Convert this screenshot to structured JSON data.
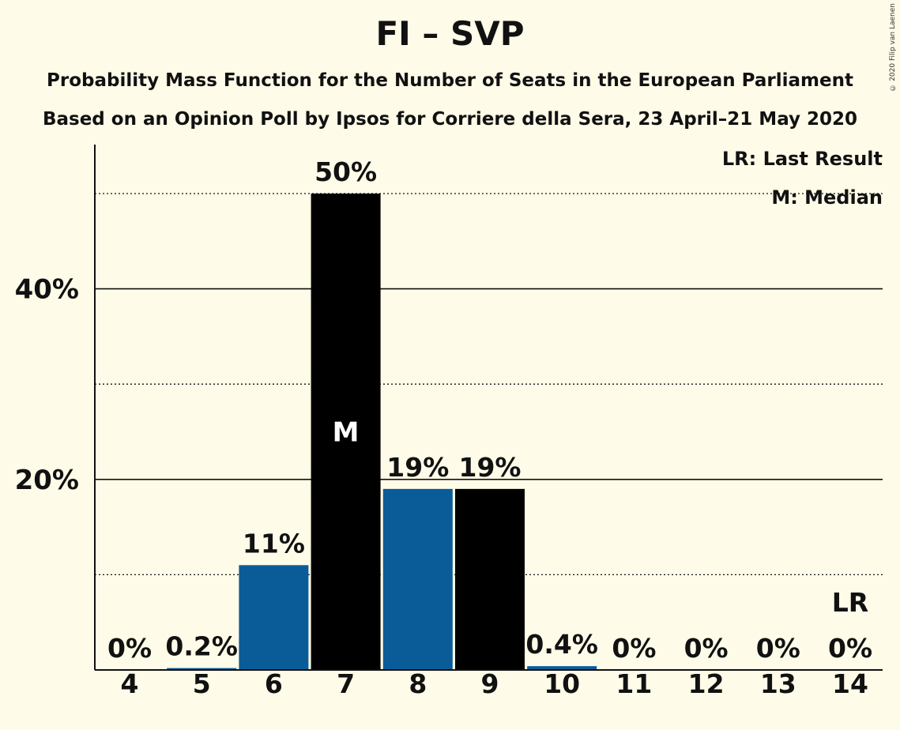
{
  "title": "FI – SVP",
  "subtitle1": "Probability Mass Function for the Number of Seats in the European Parliament",
  "subtitle2": "Based on an Opinion Poll by Ipsos for Corriere della Sera, 23 April–21 May 2020",
  "copyright": "© 2020 Filip van Laenen",
  "legend": {
    "lr": "LR: Last Result",
    "m": "M: Median"
  },
  "colors": {
    "background": "#fefbe8",
    "blue": "#0a5c99",
    "black": "#000000",
    "axis": "#111111"
  },
  "chart_data": {
    "type": "bar",
    "categories": [
      "4",
      "5",
      "6",
      "7",
      "8",
      "9",
      "10",
      "11",
      "12",
      "13",
      "14"
    ],
    "values": [
      0,
      0.2,
      11,
      50,
      19,
      19,
      0.4,
      0,
      0,
      0,
      0
    ],
    "data_labels": [
      "0%",
      "0.2%",
      "11%",
      "50%",
      "19%",
      "19%",
      "0.4%",
      "0%",
      "0%",
      "0%",
      "0%"
    ],
    "bar_colors": [
      "#0a5c99",
      "#0a5c99",
      "#0a5c99",
      "#000000",
      "#0a5c99",
      "#000000",
      "#0a5c99",
      "#0a5c99",
      "#0a5c99",
      "#0a5c99",
      "#0a5c99"
    ],
    "median": {
      "category": "7",
      "label": "M"
    },
    "last_result": {
      "category": "14",
      "label": "LR"
    },
    "ylim": [
      0,
      55
    ],
    "yticks": [
      {
        "value": 20,
        "label": "20%"
      },
      {
        "value": 40,
        "label": "40%"
      }
    ],
    "solid_gridlines": [
      20,
      40
    ],
    "dotted_gridlines": [
      10,
      30,
      50
    ],
    "legend_position": "top-right"
  }
}
